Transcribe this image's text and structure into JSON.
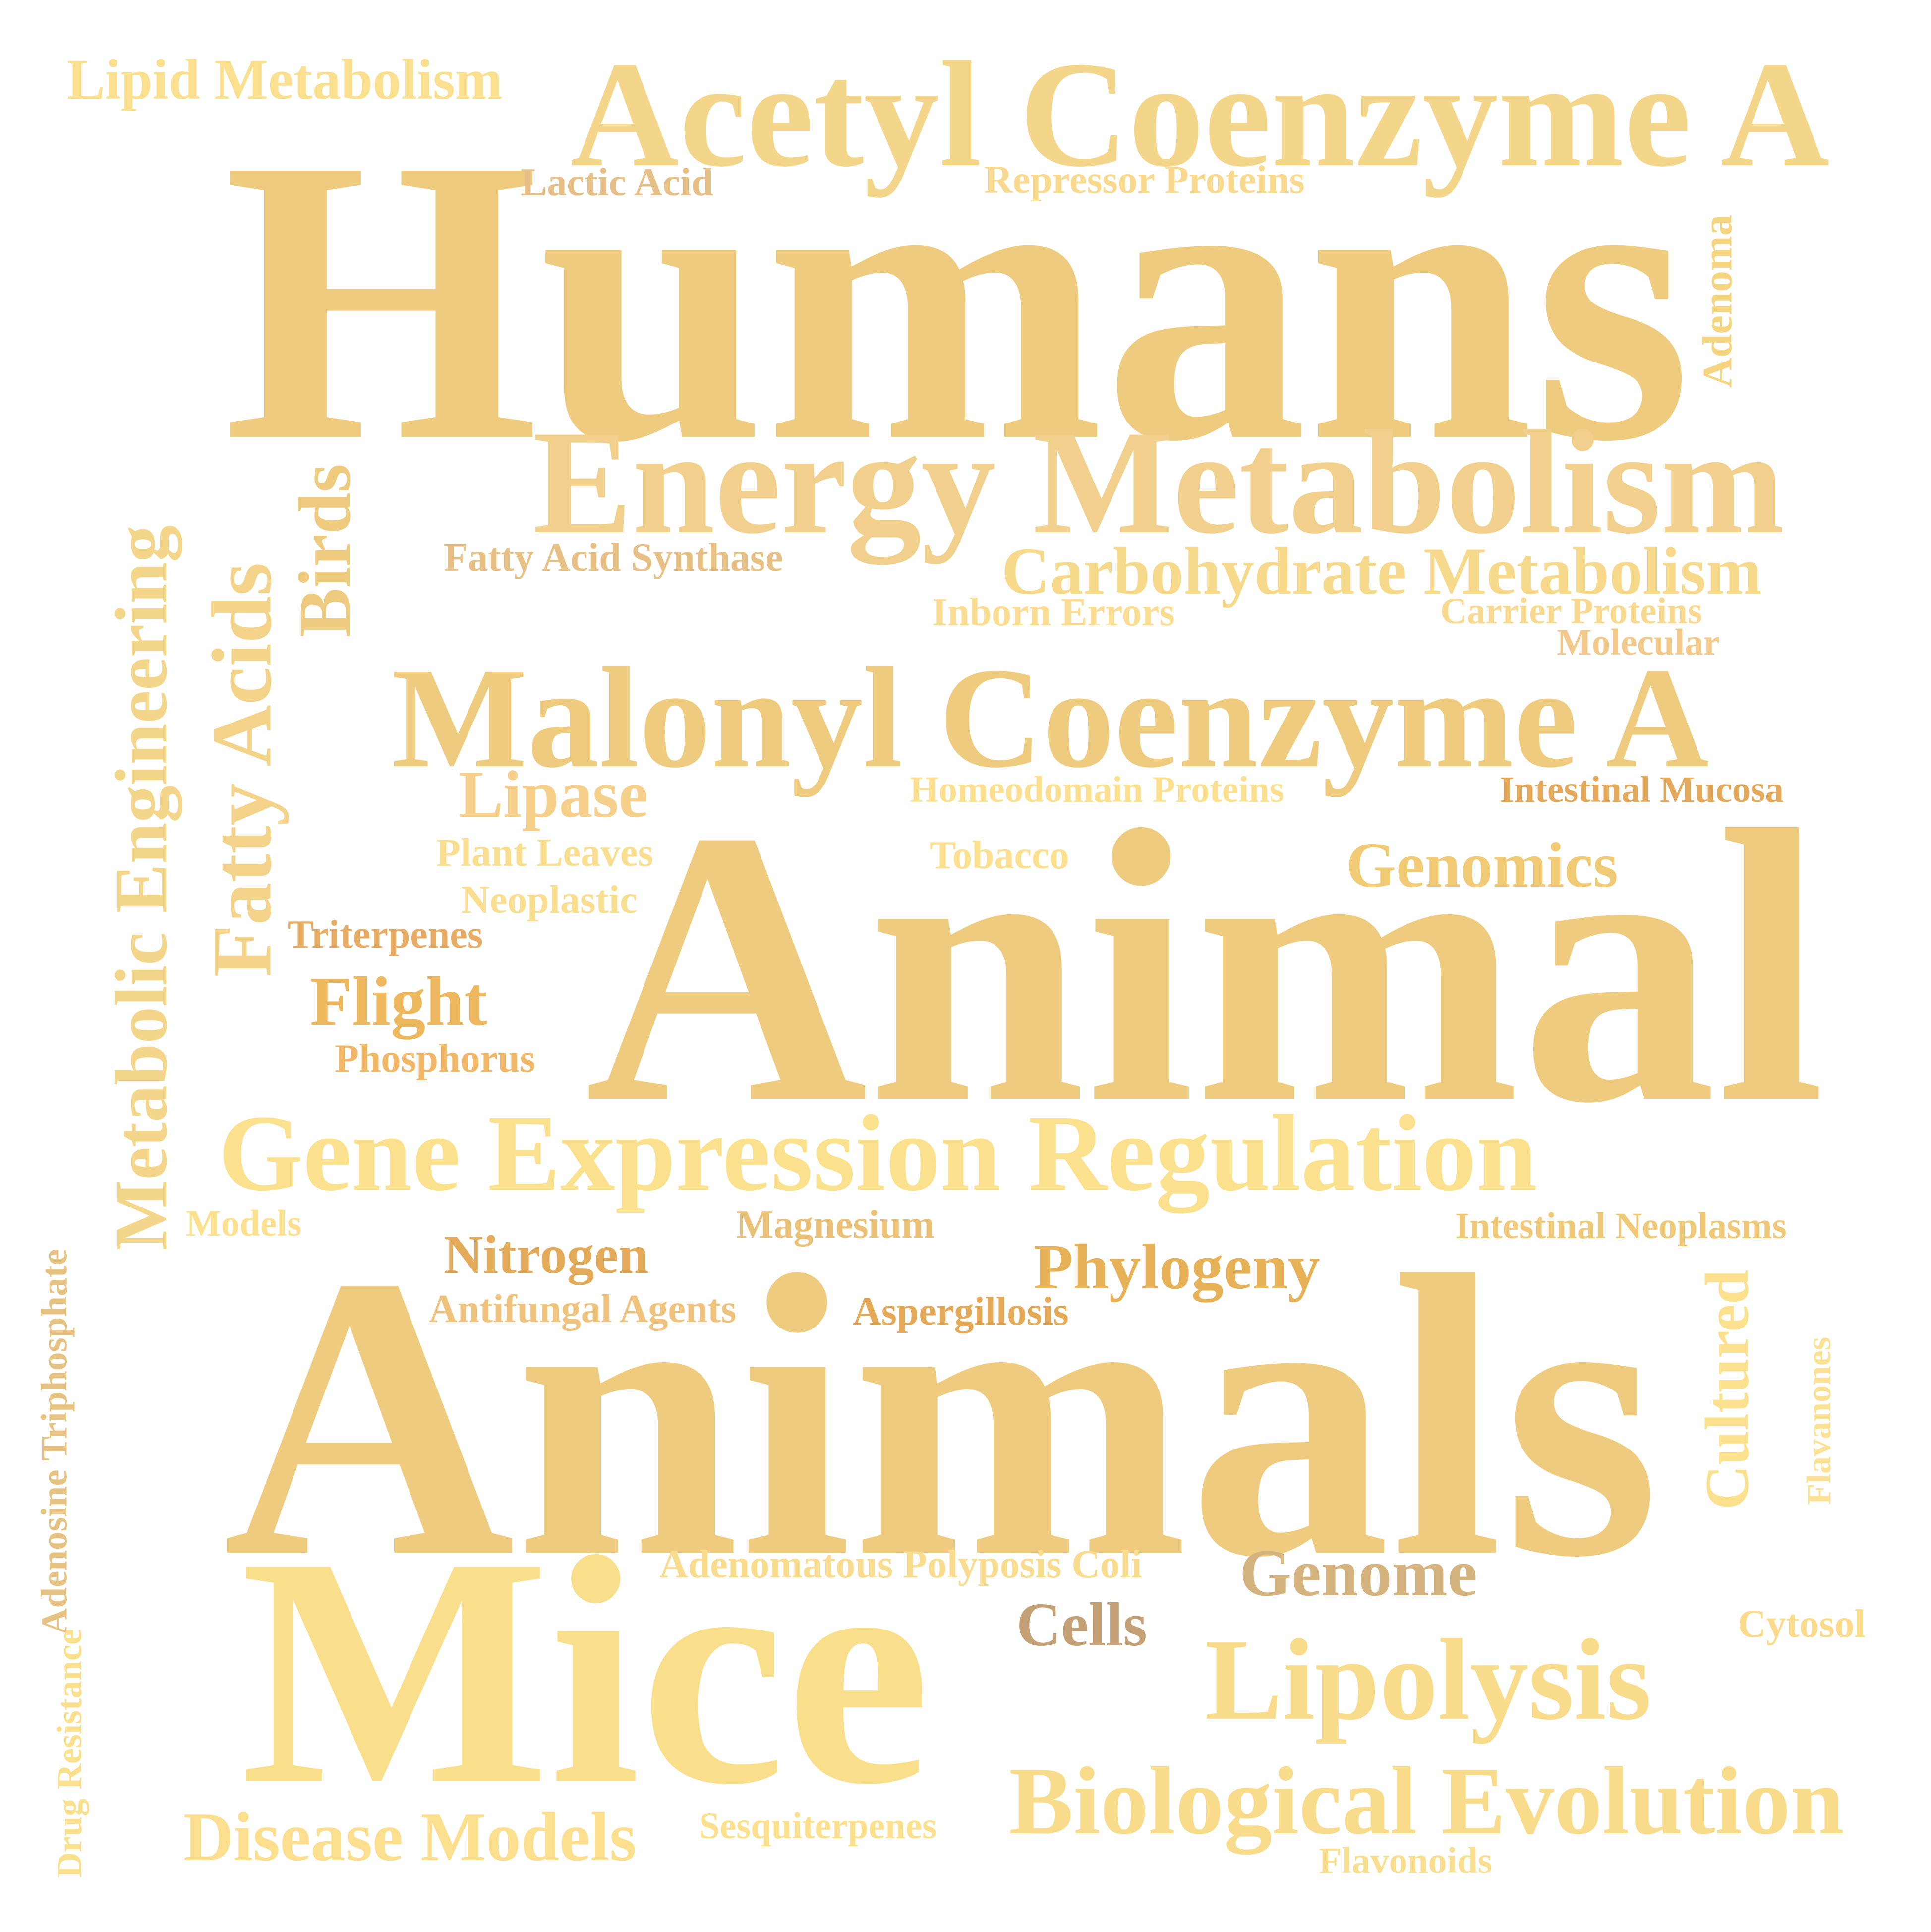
{
  "words": [
    {
      "text": "Humans",
      "color": "#eecb7e"
    },
    {
      "text": "Animal",
      "color": "#eecb7e"
    },
    {
      "text": "Animals",
      "color": "#eecb7e"
    },
    {
      "text": "Mice",
      "color": "#f9df8b"
    },
    {
      "text": "Acetyl Coenzyme A",
      "color": "#f4d68b"
    },
    {
      "text": "Energy Metabolism",
      "color": "#f0d08c"
    },
    {
      "text": "Malonyl Coenzyme A",
      "color": "#eecb7e"
    },
    {
      "text": "Gene Expression Regulation",
      "color": "#fbe18d"
    },
    {
      "text": "Metabolic Engineering",
      "color": "#f4d68a"
    },
    {
      "text": "Fatty Acids",
      "color": "#f3d38a"
    },
    {
      "text": "Lipolysis",
      "color": "#f8dc8c"
    },
    {
      "text": "Biological Evolution",
      "color": "#f8dc8c"
    },
    {
      "text": "Carbohydrate Metabolism",
      "color": "#f6d98a"
    },
    {
      "text": "Birds",
      "color": "#eecb7e"
    },
    {
      "text": "Genomics",
      "color": "#f0ca74"
    },
    {
      "text": "Phylogeny",
      "color": "#e7b257"
    },
    {
      "text": "Genome",
      "color": "#d5b37e"
    },
    {
      "text": "Cells",
      "color": "#c4a076"
    },
    {
      "text": "Flight",
      "color": "#edb75e"
    },
    {
      "text": "Lipase",
      "color": "#f6cf8a"
    },
    {
      "text": "Disease Models",
      "color": "#fbde8e"
    },
    {
      "text": "Cultured",
      "color": "#fbe08d"
    },
    {
      "text": "Nitrogen",
      "color": "#e3aa5a"
    },
    {
      "text": "Lipid Metabolism",
      "color": "#fae08e"
    },
    {
      "text": "Lactic Acid",
      "color": "#e5bf86"
    },
    {
      "text": "Repressor Proteins",
      "color": "#f8d98e"
    },
    {
      "text": "Adenoma",
      "color": "#f5d580"
    },
    {
      "text": "Fatty Acid Synthase",
      "color": "#e6c084"
    },
    {
      "text": "Inborn Errors",
      "color": "#fbdc93"
    },
    {
      "text": "Carrier Proteins",
      "color": "#f9d990"
    },
    {
      "text": "Molecular",
      "color": "#f2c98a"
    },
    {
      "text": "Homeodomain Proteins",
      "color": "#fde08f"
    },
    {
      "text": "Intestinal Mucosa",
      "color": "#e3a85a"
    },
    {
      "text": "Plant Leaves",
      "color": "#fade8f"
    },
    {
      "text": "Tobacco",
      "color": "#fde08f"
    },
    {
      "text": "Neoplastic",
      "color": "#fade8f"
    },
    {
      "text": "Triterpenes",
      "color": "#e7ad67"
    },
    {
      "text": "Phosphorus",
      "color": "#f0b768"
    },
    {
      "text": "Models",
      "color": "#fde08f"
    },
    {
      "text": "Magnesium",
      "color": "#ebc077"
    },
    {
      "text": "Intestinal Neoplasms",
      "color": "#efc978"
    },
    {
      "text": "Antifungal Agents",
      "color": "#efc37d"
    },
    {
      "text": "Aspergillosis",
      "color": "#e4a957"
    },
    {
      "text": "Adenosine Triphosphate",
      "color": "#e6c382"
    },
    {
      "text": "Flavanones",
      "color": "#fbe193"
    },
    {
      "text": "Adenomatous Polyposis Coli",
      "color": "#f9dc8e"
    },
    {
      "text": "Drug Resistance",
      "color": "#fadf8c"
    },
    {
      "text": "Cytosol",
      "color": "#fbda8c"
    },
    {
      "text": "Sesquiterpenes",
      "color": "#fde08e"
    },
    {
      "text": "Flavonoids",
      "color": "#fade8f"
    }
  ]
}
